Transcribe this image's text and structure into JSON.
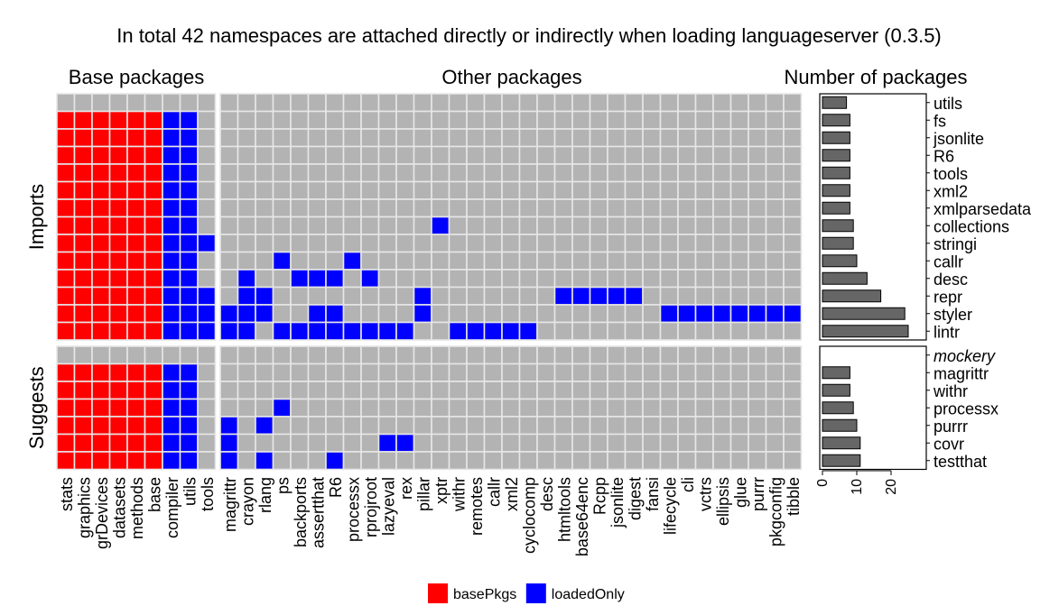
{
  "chart_data": {
    "type": "heatmap",
    "title": "In total 42 namespaces are attached directly or indirectly when loading languageserver (0.3.5)",
    "panels": {
      "base": "Base packages",
      "other": "Other packages",
      "count": "Number of packages"
    },
    "groups": [
      "Imports",
      "Suggests"
    ],
    "base_cols": [
      "stats",
      "graphics",
      "grDevices",
      "datasets",
      "methods",
      "base",
      "compiler",
      "utils",
      "tools"
    ],
    "other_cols": [
      "magrittr",
      "crayon",
      "rlang",
      "ps",
      "backports",
      "assertthat",
      "R6",
      "processx",
      "rprojroot",
      "lazyeval",
      "rex",
      "pillar",
      "xptr",
      "withr",
      "remotes",
      "callr",
      "xml2",
      "cyclocomp",
      "desc",
      "htmltools",
      "base64enc",
      "Rcpp",
      "jsonlite",
      "digest",
      "fansi",
      "lifecycle",
      "cli",
      "vctrs",
      "ellipsis",
      "glue",
      "purrr",
      "pkgconfig",
      "tibble"
    ],
    "imports_rows": [
      "utils",
      "fs",
      "jsonlite",
      "R6",
      "tools",
      "xml2",
      "xmlparsedata",
      "collections",
      "stringi",
      "callr",
      "desc",
      "repr",
      "styler",
      "lintr"
    ],
    "suggests_rows": [
      "mockery",
      "magrittr",
      "withr",
      "processx",
      "purrr",
      "covr",
      "testthat"
    ],
    "imports_counts": [
      7,
      8,
      8,
      8,
      8,
      8,
      8,
      9,
      9,
      10,
      13,
      17,
      24,
      25
    ],
    "suggests_counts": [
      null,
      8,
      8,
      9,
      10,
      11,
      11
    ],
    "imports_base": [
      "000000000",
      "000000110",
      "000000110",
      "000000110",
      "000000110",
      "000000110",
      "000000110",
      "000000110",
      "000000111",
      "000000110",
      "000000110",
      "000000111",
      "000000111",
      "000000111"
    ],
    "imports_other": [
      "000000000000000000000000000000000",
      "000000000000000000000000000000000",
      "000000000000000000000000000000000",
      "000000000000000000000000000000000",
      "000000000000000000000000000000000",
      "000000000000000000000000000000000",
      "000000000000000000000000000000000",
      "000000000000100000000000000000000",
      "000000000000000000000000000000000",
      "000100010000000000000000000000000",
      "010011101000000000000000000000000",
      "011000000001000000011111000000000",
      "111001100001000000000000011111111",
      "110111111110011111000000000000000"
    ],
    "suggests_base": [
      "000000000",
      "000000110",
      "000000110",
      "000000110",
      "000000110",
      "000000110",
      "000000110"
    ],
    "suggests_other": [
      "000000000000000000000000000000000",
      "000000000000000000000000000000000",
      "000000000000000000000000000000000",
      "000100000000000000000000000000000",
      "101000000000000000000000000000000",
      "100000000110000000000000000000000",
      "101000100000000000000000000000000"
    ],
    "xlim": [
      0,
      27
    ],
    "x_ticks": [
      "0",
      "10",
      "20"
    ],
    "legend": [
      {
        "name": "basePkgs",
        "color": "#ff0000"
      },
      {
        "name": "loadedOnly",
        "color": "#0000ff"
      }
    ],
    "legend_position": "bottom",
    "colors": {
      "base_fill": "#ff0000",
      "loaded_fill": "#0000ff",
      "empty_fill": "#b3b3b3",
      "bar_fill": "#666666",
      "muted_label": "#999999"
    }
  }
}
